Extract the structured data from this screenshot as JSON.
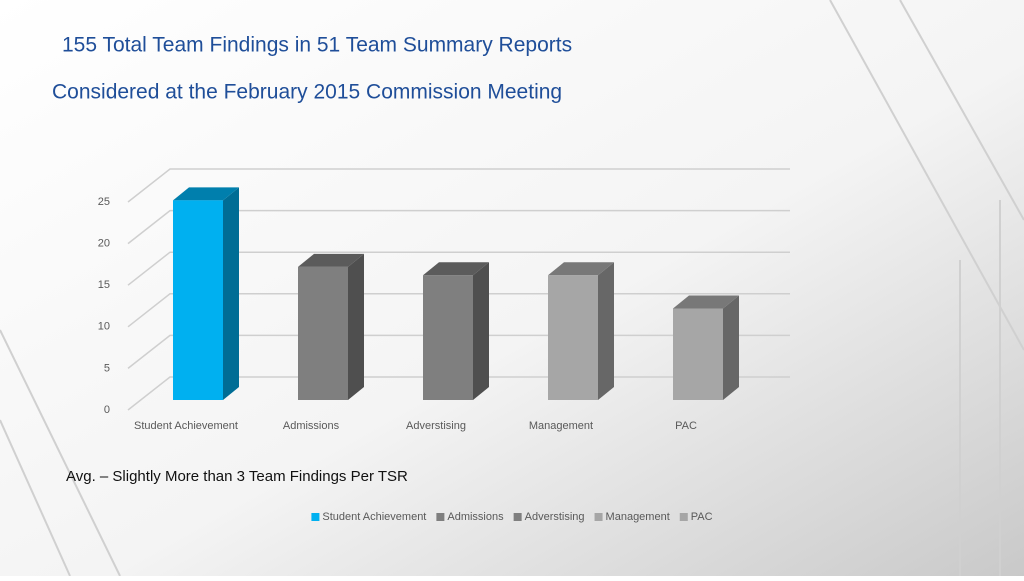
{
  "chart_data": {
    "type": "bar3d",
    "title": "155 Total Team Findings in 51 Team Summary Reports",
    "subtitle": "Considered at the February 2015 Commission Meeting",
    "annotation": "Avg. – Slightly More than 3 Team Findings Per TSR",
    "categories": [
      "Student Achievement",
      "Admissions",
      "Adverstising",
      "Management",
      "PAC"
    ],
    "values": [
      24,
      16,
      15,
      15,
      11
    ],
    "colors": [
      "#00b0f0",
      "#7f7f7f",
      "#7f7f7f",
      "#a6a6a6",
      "#a6a6a6"
    ],
    "ylim": [
      0,
      25
    ],
    "yticks": [
      0,
      5,
      10,
      15,
      20,
      25
    ],
    "grid": true,
    "legend": "bottom"
  }
}
